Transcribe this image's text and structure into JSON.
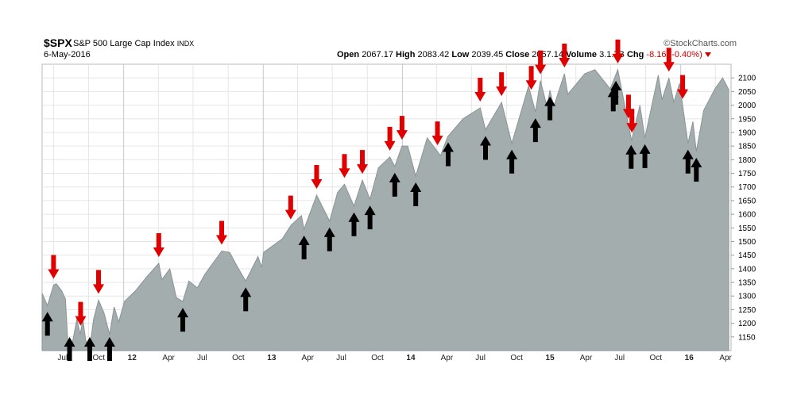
{
  "header": {
    "symbol": "$SPX",
    "name": "S&P 500 Large Cap Index",
    "exchange": "INDX",
    "date": "6-May-2016",
    "brand": "StockCharts.com",
    "open_label": "Open",
    "open": "2067.17",
    "high_label": "High",
    "high": "2083.42",
    "low_label": "Low",
    "low": "2039.45",
    "close_label": "Close",
    "close": "2057.14",
    "volume_label": "Volume",
    "volume": "3.1.7B",
    "chg_label": "Chg",
    "chg": "-8.16 (-0.40%)"
  },
  "colors": {
    "area_fill": "#a4adad",
    "area_line": "#8a9494",
    "up_arrow": "#000000",
    "down_arrow": "#e00000",
    "grid": "#e6e6e6",
    "year_grid": "#c8c8c8"
  },
  "chart_data": {
    "type": "area",
    "title": "$SPX S&P 500 Large Cap Index",
    "x_range": [
      "2011-06",
      "2016-05"
    ],
    "ylim": [
      1100,
      2150
    ],
    "y_ticks": [
      1150,
      1200,
      1250,
      1300,
      1350,
      1400,
      1450,
      1500,
      1550,
      1600,
      1650,
      1700,
      1750,
      1800,
      1850,
      1900,
      1950,
      2000,
      2050,
      2100
    ],
    "x_ticks": [
      {
        "label": "Jul",
        "t": "2011-07"
      },
      {
        "label": "Oct",
        "t": "2011-10"
      },
      {
        "label": "12",
        "t": "2012-01",
        "year": true
      },
      {
        "label": "Apr",
        "t": "2012-04"
      },
      {
        "label": "Jul",
        "t": "2012-07"
      },
      {
        "label": "Oct",
        "t": "2012-10"
      },
      {
        "label": "13",
        "t": "2013-01",
        "year": true
      },
      {
        "label": "Apr",
        "t": "2013-04"
      },
      {
        "label": "Jul",
        "t": "2013-07"
      },
      {
        "label": "Oct",
        "t": "2013-10"
      },
      {
        "label": "14",
        "t": "2014-01",
        "year": true
      },
      {
        "label": "Apr",
        "t": "2014-04"
      },
      {
        "label": "Jul",
        "t": "2014-07"
      },
      {
        "label": "Oct",
        "t": "2014-10"
      },
      {
        "label": "15",
        "t": "2015-01",
        "year": true
      },
      {
        "label": "Apr",
        "t": "2015-04"
      },
      {
        "label": "Jul",
        "t": "2015-07"
      },
      {
        "label": "Oct",
        "t": "2015-10"
      },
      {
        "label": "16",
        "t": "2016-01",
        "year": true
      },
      {
        "label": "Apr",
        "t": "2016-04"
      }
    ],
    "series": [
      {
        "points": [
          [
            "2011-06-01",
            1310
          ],
          [
            "2011-06-15",
            1265
          ],
          [
            "2011-07-01",
            1340
          ],
          [
            "2011-07-08",
            1345
          ],
          [
            "2011-07-22",
            1320
          ],
          [
            "2011-08-01",
            1290
          ],
          [
            "2011-08-08",
            1120
          ],
          [
            "2011-08-19",
            1125
          ],
          [
            "2011-08-31",
            1215
          ],
          [
            "2011-09-09",
            1160
          ],
          [
            "2011-09-16",
            1215
          ],
          [
            "2011-09-23",
            1140
          ],
          [
            "2011-10-03",
            1100
          ],
          [
            "2011-10-14",
            1215
          ],
          [
            "2011-10-27",
            1285
          ],
          [
            "2011-11-10",
            1240
          ],
          [
            "2011-11-25",
            1160
          ],
          [
            "2011-12-07",
            1260
          ],
          [
            "2011-12-19",
            1205
          ],
          [
            "2012-01-03",
            1280
          ],
          [
            "2012-02-01",
            1320
          ],
          [
            "2012-03-01",
            1370
          ],
          [
            "2012-04-02",
            1420
          ],
          [
            "2012-04-10",
            1360
          ],
          [
            "2012-05-01",
            1400
          ],
          [
            "2012-05-18",
            1295
          ],
          [
            "2012-06-04",
            1280
          ],
          [
            "2012-06-20",
            1355
          ],
          [
            "2012-07-12",
            1330
          ],
          [
            "2012-08-01",
            1380
          ],
          [
            "2012-09-14",
            1465
          ],
          [
            "2012-10-05",
            1460
          ],
          [
            "2012-10-24",
            1410
          ],
          [
            "2012-11-16",
            1355
          ],
          [
            "2012-12-18",
            1445
          ],
          [
            "2012-12-28",
            1405
          ],
          [
            "2013-01-02",
            1460
          ],
          [
            "2013-02-20",
            1510
          ],
          [
            "2013-03-15",
            1560
          ],
          [
            "2013-04-11",
            1595
          ],
          [
            "2013-04-18",
            1545
          ],
          [
            "2013-05-21",
            1670
          ],
          [
            "2013-06-24",
            1575
          ],
          [
            "2013-07-15",
            1680
          ],
          [
            "2013-08-02",
            1710
          ],
          [
            "2013-08-27",
            1630
          ],
          [
            "2013-09-18",
            1725
          ],
          [
            "2013-10-08",
            1655
          ],
          [
            "2013-10-30",
            1770
          ],
          [
            "2013-11-29",
            1810
          ],
          [
            "2013-12-12",
            1775
          ],
          [
            "2013-12-31",
            1850
          ],
          [
            "2014-01-15",
            1850
          ],
          [
            "2014-02-05",
            1740
          ],
          [
            "2014-03-07",
            1880
          ],
          [
            "2014-04-11",
            1815
          ],
          [
            "2014-04-30",
            1885
          ],
          [
            "2014-06-09",
            1950
          ],
          [
            "2014-07-24",
            1990
          ],
          [
            "2014-08-07",
            1910
          ],
          [
            "2014-09-18",
            2010
          ],
          [
            "2014-10-15",
            1860
          ],
          [
            "2014-11-28",
            2070
          ],
          [
            "2014-12-16",
            1975
          ],
          [
            "2014-12-29",
            2090
          ],
          [
            "2015-01-15",
            1995
          ],
          [
            "2015-01-23",
            2055
          ],
          [
            "2015-02-02",
            1995
          ],
          [
            "2015-03-02",
            2115
          ],
          [
            "2015-03-11",
            2040
          ],
          [
            "2015-04-24",
            2115
          ],
          [
            "2015-05-21",
            2130
          ],
          [
            "2015-06-30",
            2060
          ],
          [
            "2015-07-20",
            2130
          ],
          [
            "2015-08-25",
            1870
          ],
          [
            "2015-09-16",
            2000
          ],
          [
            "2015-09-29",
            1880
          ],
          [
            "2015-11-03",
            2110
          ],
          [
            "2015-11-13",
            2020
          ],
          [
            "2015-12-01",
            2100
          ],
          [
            "2015-12-14",
            2010
          ],
          [
            "2015-12-29",
            2080
          ],
          [
            "2016-01-20",
            1860
          ],
          [
            "2016-02-02",
            1940
          ],
          [
            "2016-02-11",
            1830
          ],
          [
            "2016-03-01",
            1980
          ],
          [
            "2016-03-31",
            2060
          ],
          [
            "2016-04-20",
            2100
          ],
          [
            "2016-05-06",
            2057
          ]
        ]
      }
    ],
    "arrows_down": [
      "2011-07-01",
      "2011-09-10",
      "2011-10-27",
      "2012-04-02",
      "2012-09-14",
      "2013-03-14",
      "2013-05-21",
      "2013-08-02",
      "2013-09-18",
      "2013-11-29",
      "2013-12-31",
      "2014-04-03",
      "2014-07-24",
      "2014-09-18",
      "2014-12-05",
      "2014-12-29",
      "2015-03-02",
      "2015-07-20",
      "2015-08-17",
      "2015-08-26",
      "2015-12-01",
      "2016-01-06"
    ],
    "arrows_up": [
      "2011-06-15",
      "2011-08-12",
      "2011-10-04",
      "2011-11-25",
      "2012-06-04",
      "2012-11-16",
      "2013-04-18",
      "2013-06-24",
      "2013-08-27",
      "2013-10-08",
      "2013-12-12",
      "2014-02-05",
      "2014-05-01",
      "2014-08-07",
      "2014-10-15",
      "2014-12-16",
      "2015-01-23",
      "2015-07-08",
      "2015-07-15",
      "2015-08-24",
      "2015-09-29",
      "2016-01-20",
      "2016-02-11"
    ]
  }
}
